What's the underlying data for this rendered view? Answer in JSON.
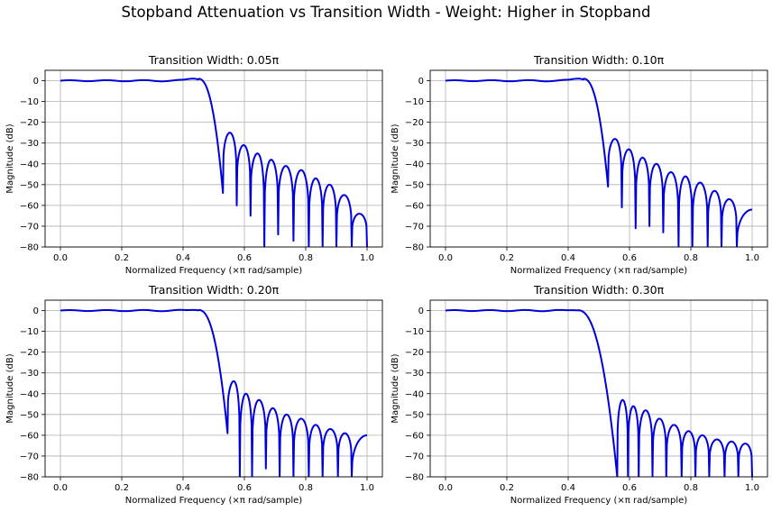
{
  "figure": {
    "title": "Stopband Attenuation vs Transition Width - Weight: Higher in Stopband",
    "line_color": "#0000dd",
    "grid_color": "#b0b0b0"
  },
  "chart_data": [
    {
      "type": "line",
      "title": "Transition Width: 0.05π",
      "xlabel": "Normalized Frequency (×π rad/sample)",
      "ylabel": "Magnitude (dB)",
      "xlim": [
        -0.05,
        1.05
      ],
      "ylim": [
        -80,
        5
      ],
      "xticks": [
        "0.0",
        "0.2",
        "0.4",
        "0.6",
        "0.8",
        "1.0"
      ],
      "yticks": [
        "0",
        "−10",
        "−20",
        "−30",
        "−40",
        "−50",
        "−60",
        "−70",
        "−80"
      ],
      "grid": true,
      "passband": {
        "x_end": 0.45,
        "peak_db": 1.0
      },
      "first_zero": 0.53,
      "stopband": {
        "zeros": [
          0.53,
          0.575,
          0.62,
          0.665,
          0.71,
          0.76,
          0.81,
          0.855,
          0.9,
          0.95,
          1.0
        ],
        "lobe_peaks_db": [
          -25,
          -31,
          -35,
          -38,
          -41,
          -43,
          -47,
          -50,
          -55,
          -64
        ],
        "null_depths_db": [
          -54,
          -60,
          -65,
          -80,
          -74,
          -77,
          -80,
          -80,
          -80,
          -80,
          -80
        ]
      }
    },
    {
      "type": "line",
      "title": "Transition Width: 0.10π",
      "xlabel": "Normalized Frequency (×π rad/sample)",
      "ylabel": "Magnitude (dB)",
      "xlim": [
        -0.05,
        1.05
      ],
      "ylim": [
        -80,
        5
      ],
      "xticks": [
        "0.0",
        "0.2",
        "0.4",
        "0.6",
        "0.8",
        "1.0"
      ],
      "yticks": [
        "0",
        "−10",
        "−20",
        "−30",
        "−40",
        "−50",
        "−60",
        "−70",
        "−80"
      ],
      "grid": true,
      "passband": {
        "x_end": 0.45,
        "peak_db": 1.0
      },
      "first_zero": 0.53,
      "stopband": {
        "zeros": [
          0.53,
          0.575,
          0.62,
          0.665,
          0.71,
          0.76,
          0.805,
          0.855,
          0.9,
          0.95
        ],
        "lobe_peaks_db": [
          -28,
          -33,
          -37,
          -40,
          -44,
          -46,
          -49,
          -53,
          -57,
          -62
        ],
        "end_db": -62,
        "null_depths_db": [
          -51,
          -61,
          -71,
          -70,
          -73,
          -80,
          -80,
          -80,
          -80,
          -80
        ]
      }
    },
    {
      "type": "line",
      "title": "Transition Width: 0.20π",
      "xlabel": "Normalized Frequency (×π rad/sample)",
      "ylabel": "Magnitude (dB)",
      "xlim": [
        -0.05,
        1.05
      ],
      "ylim": [
        -80,
        5
      ],
      "xticks": [
        "0.0",
        "0.2",
        "0.4",
        "0.6",
        "0.8",
        "1.0"
      ],
      "yticks": [
        "0",
        "−10",
        "−20",
        "−30",
        "−40",
        "−50",
        "−60",
        "−70",
        "−80"
      ],
      "grid": true,
      "passband": {
        "x_end": 0.45,
        "peak_db": 0.3
      },
      "first_zero": 0.545,
      "stopband": {
        "zeros": [
          0.545,
          0.585,
          0.625,
          0.67,
          0.715,
          0.76,
          0.81,
          0.855,
          0.905,
          0.95
        ],
        "lobe_peaks_db": [
          -34,
          -40,
          -43,
          -47,
          -50,
          -52,
          -55,
          -57,
          -59,
          -60
        ],
        "end_db": -61,
        "null_depths_db": [
          -59,
          -80,
          -80,
          -76,
          -80,
          -80,
          -80,
          -80,
          -80,
          -80
        ]
      }
    },
    {
      "type": "line",
      "title": "Transition Width: 0.30π",
      "xlabel": "Normalized Frequency (×π rad/sample)",
      "ylabel": "Magnitude (dB)",
      "xlim": [
        -0.05,
        1.05
      ],
      "ylim": [
        -80,
        5
      ],
      "xticks": [
        "0.0",
        "0.2",
        "0.4",
        "0.6",
        "0.8",
        "1.0"
      ],
      "yticks": [
        "0",
        "−10",
        "−20",
        "−30",
        "−40",
        "−50",
        "−60",
        "−70",
        "−80"
      ],
      "grid": true,
      "passband": {
        "x_end": 0.43,
        "peak_db": 0.2
      },
      "first_zero": 0.56,
      "stopband": {
        "zeros": [
          0.56,
          0.595,
          0.63,
          0.675,
          0.72,
          0.77,
          0.815,
          0.86,
          0.91,
          0.955,
          1.0
        ],
        "lobe_peaks_db": [
          -43,
          -46,
          -48,
          -52,
          -55,
          -58,
          -60,
          -62,
          -63,
          -64
        ],
        "end_db": -65,
        "null_depths_db": [
          -80,
          -80,
          -80,
          -80,
          -80,
          -80,
          -80,
          -80,
          -80,
          -80,
          -80
        ]
      }
    }
  ]
}
